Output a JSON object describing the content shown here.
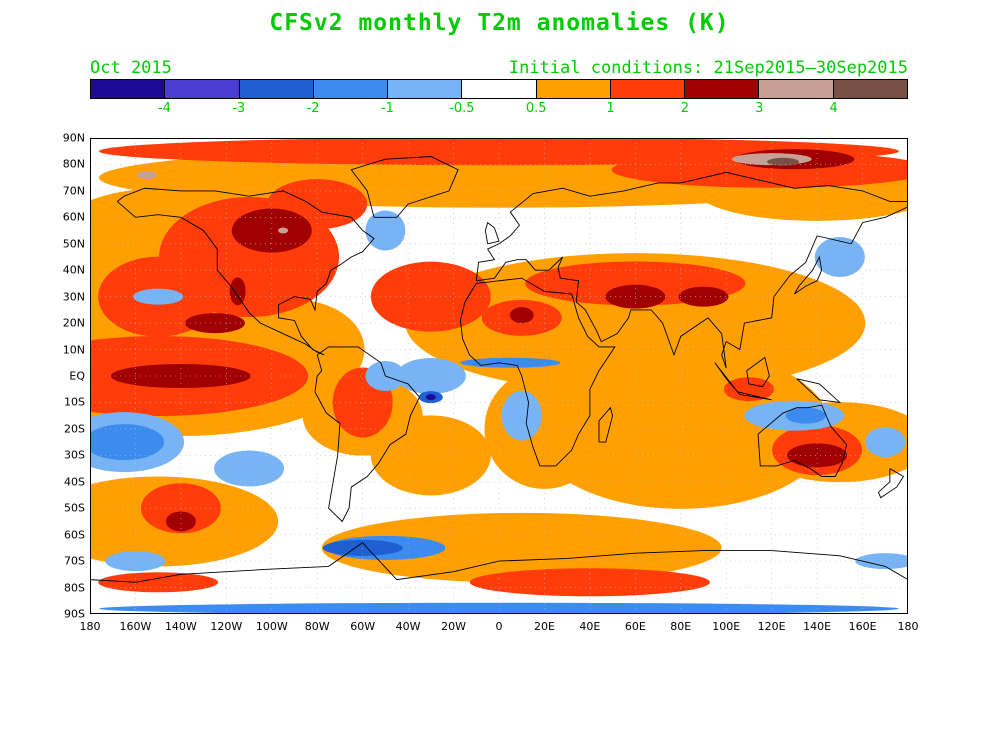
{
  "title": "CFSv2 monthly T2m anomalies (K)",
  "period": "Oct 2015",
  "initial_conditions": "Initial conditions: 21Sep2015–30Sep2015",
  "text_color": "#00cc00",
  "colorbar": {
    "colors": [
      "#1f0a96",
      "#4a3dd2",
      "#1f5fd2",
      "#3c8cf0",
      "#78b4f5",
      "#ffffff",
      "#ffa000",
      "#ff3c0a",
      "#a00000",
      "#c8a096",
      "#785046"
    ],
    "labels": [
      "-4",
      "-3",
      "-2",
      "-1",
      "-0.5",
      "0.5",
      "1",
      "2",
      "3",
      "4"
    ]
  },
  "axes": {
    "lat_labels": [
      "90N",
      "80N",
      "70N",
      "60N",
      "50N",
      "40N",
      "30N",
      "20N",
      "10N",
      "EQ",
      "10S",
      "20S",
      "30S",
      "40S",
      "50S",
      "60S",
      "70S",
      "80S",
      "90S"
    ],
    "lon_labels": [
      "180",
      "160W",
      "140W",
      "120W",
      "100W",
      "80W",
      "60W",
      "40W",
      "20W",
      "0",
      "20E",
      "40E",
      "60E",
      "80E",
      "100E",
      "120E",
      "140E",
      "160E",
      "180"
    ]
  },
  "map": {
    "background": "#ffffff",
    "grid": "dotted 10 degree",
    "coastline_color": "#000000"
  }
}
